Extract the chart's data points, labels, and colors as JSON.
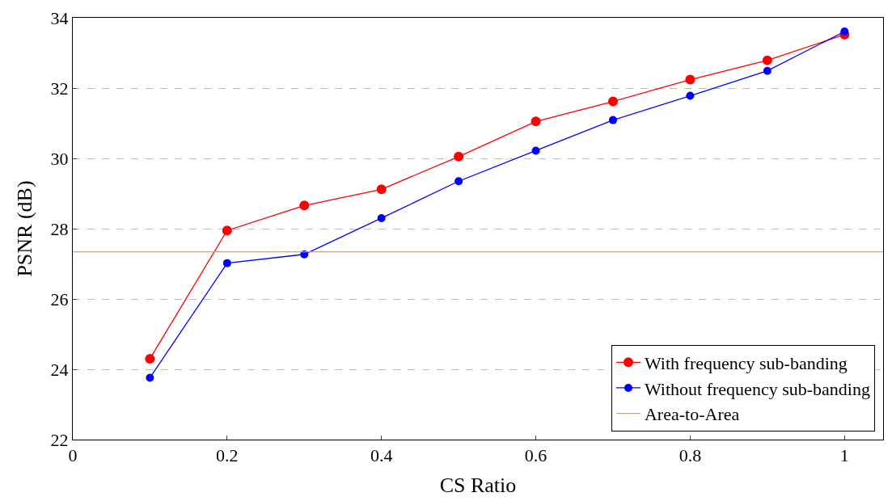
{
  "chart_data": {
    "type": "line",
    "xlabel": "CS Ratio",
    "ylabel": "PSNR (dB)",
    "x": [
      0.1,
      0.2,
      0.3,
      0.4,
      0.5,
      0.6,
      0.7,
      0.8,
      0.9,
      1.0
    ],
    "series": [
      {
        "name": "With frequency sub-banding",
        "color": "#ff0000",
        "marker": "circle",
        "values": [
          24.3,
          27.95,
          28.66,
          29.12,
          30.05,
          31.05,
          31.62,
          32.24,
          32.79,
          33.52
        ]
      },
      {
        "name": "Without frequency sub-banding",
        "color": "#0000ff",
        "marker": "circle",
        "values": [
          23.76,
          27.02,
          27.27,
          28.3,
          29.35,
          30.22,
          31.09,
          31.78,
          32.49,
          33.61
        ]
      },
      {
        "name": "Area-to-Area",
        "color": "#ff9933",
        "marker": "none",
        "x": [
          0,
          1.05
        ],
        "values": [
          27.34,
          27.34
        ]
      }
    ],
    "xlim": [
      0,
      1.05
    ],
    "xticks": [
      0,
      0.2,
      0.4,
      0.6,
      0.8,
      1
    ],
    "ylim": [
      22,
      34
    ],
    "yticks": [
      22,
      24,
      26,
      28,
      30,
      32,
      34
    ],
    "grid": "y",
    "legend": "bottom right"
  }
}
